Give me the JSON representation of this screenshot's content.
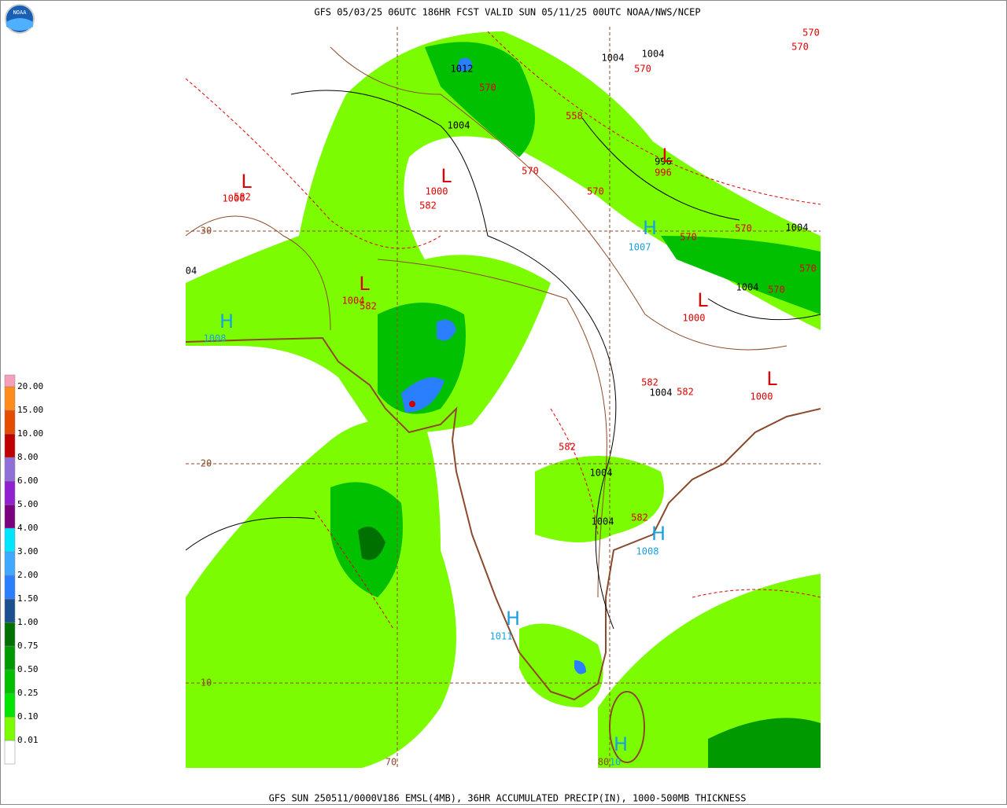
{
  "header": {
    "title": "GFS 05/03/25 06UTC 186HR FCST VALID SUN 05/11/25 00UTC NOAA/NWS/NCEP",
    "logo": "NOAA"
  },
  "footer": "GFS SUN 250511/0000V186 EMSL(4MB), 36HR ACCUMULATED PRECIP(IN), 1000-500MB THICKNESS",
  "legend": {
    "labels": [
      "0.01",
      "0.10",
      "0.25",
      "0.50",
      "0.75",
      "1.00",
      "1.50",
      "2.00",
      "3.00",
      "4.00",
      "5.00",
      "6.00",
      "8.00",
      "10.00",
      "15.00",
      "20.00"
    ],
    "colors": [
      "#ffffff",
      "#7cfc00",
      "#00e600",
      "#00c000",
      "#009a00",
      "#007000",
      "#1c4f8f",
      "#2a7fff",
      "#3fa9ff",
      "#00e5ff",
      "#7a0080",
      "#9020d0",
      "#8f70d8",
      "#c00000",
      "#e64c00",
      "#ff8c1a",
      "#f5a0b8"
    ]
  },
  "map": {
    "lat_labels": {
      "color": "#8b4a2b",
      "texts": [
        "30",
        "20",
        "10"
      ]
    },
    "lon_labels": {
      "color": "#8b4a2b",
      "texts": [
        "70",
        "80"
      ]
    },
    "isobar_labels": {
      "color": "#000000",
      "texts": [
        "1004",
        "1004",
        "1012",
        "1004",
        "996",
        "1004",
        "1004",
        "1004",
        "1004",
        "1004",
        "04"
      ]
    },
    "thickness_labels": {
      "color": "#e00000",
      "texts": [
        "570",
        "570",
        "570",
        "570",
        "558",
        "570",
        "996",
        "570",
        "582",
        "1000",
        "1000",
        "582",
        "570",
        "570",
        "570",
        "570",
        "1004",
        "582",
        "1000",
        "582",
        "582",
        "1000",
        "582",
        "582"
      ]
    },
    "low_centers": {
      "color": "#e00000",
      "texts": [
        "L",
        "L",
        "L",
        "L",
        "L",
        "L"
      ]
    },
    "high_centers": {
      "color": "#1aa0e0",
      "texts": [
        "H",
        "H",
        "H",
        "H",
        "H"
      ]
    },
    "high_values": {
      "color": "#1aa0e0",
      "texts": [
        "1007",
        "1008",
        "1008",
        "1011",
        "10"
      ]
    }
  }
}
